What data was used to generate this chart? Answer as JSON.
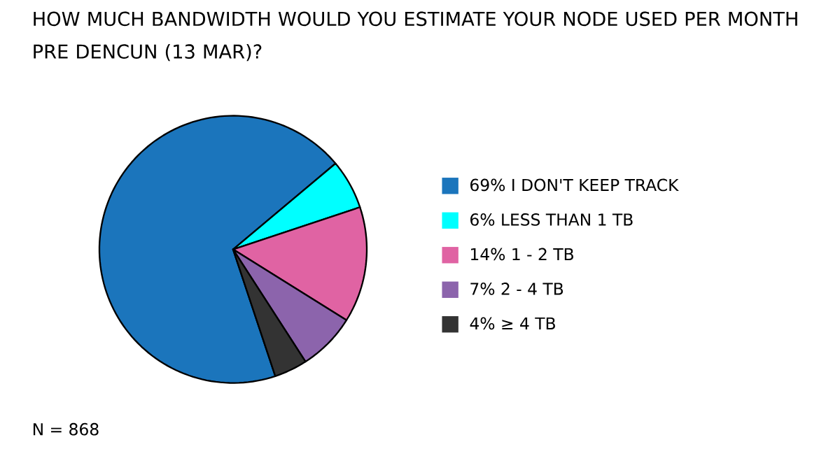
{
  "chart_data": {
    "type": "pie",
    "title": "HOW MUCH BANDWIDTH WOULD YOU ESTIMATE YOUR NODE USED PER MONTH PRE DENCUN (13 MAR)?",
    "categories": [
      "69% I DON'T KEEP TRACK",
      "6% LESS THAN 1 TB",
      "14% 1 - 2 TB",
      "7% 2 - 4 TB",
      "4% ≥ 4 TB"
    ],
    "values": [
      69,
      6,
      14,
      7,
      4
    ],
    "colors": [
      "#1b75bc",
      "#00ffff",
      "#e063a3",
      "#8c64ac",
      "#333333"
    ],
    "legend": "right",
    "annotations": [
      "N = 868"
    ]
  }
}
